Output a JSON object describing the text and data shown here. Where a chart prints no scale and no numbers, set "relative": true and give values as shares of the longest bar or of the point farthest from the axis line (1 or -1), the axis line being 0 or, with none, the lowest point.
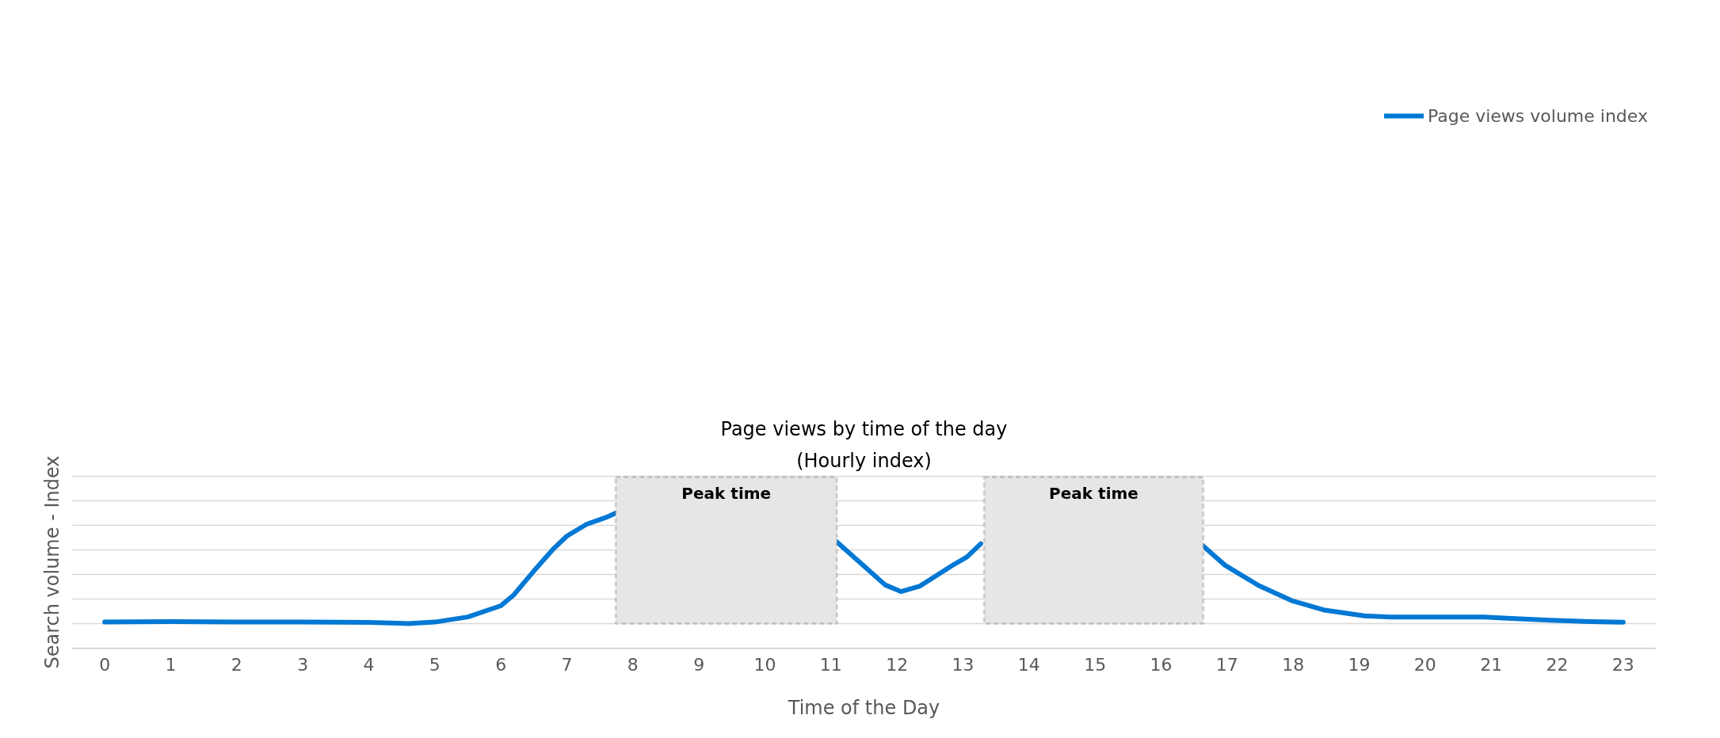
{
  "chart_data": {
    "type": "line",
    "title": "Page views by time of the day",
    "subtitle": "(Hourly index)",
    "xlabel": "Time of the Day",
    "ylabel": "Search volume - Index",
    "relative": true,
    "xlim": [
      -0.5,
      23.5
    ],
    "xticks": [
      0,
      1,
      2,
      3,
      4,
      5,
      6,
      7,
      8,
      9,
      10,
      11,
      12,
      13,
      14,
      15,
      16,
      17,
      18,
      19,
      20,
      21,
      22,
      23
    ],
    "series": [
      {
        "name": "Page views volume index",
        "color": "#0078d4",
        "x": [
          0,
          1,
          2,
          3,
          4,
          4.6,
          5,
          5.5,
          6,
          6.2,
          6.5,
          6.8,
          7,
          7.3,
          7.6,
          7.74,
          9.5,
          11.06,
          11.56,
          11.82,
          12.06,
          12.34,
          12.84,
          13.06,
          13.27,
          15,
          16.62,
          16.97,
          17.48,
          17.98,
          18.48,
          19.08,
          19.48,
          19.99,
          20.89,
          21.24,
          21.89,
          22.5,
          23
        ],
        "values": [
          0.004,
          0.008,
          0.005,
          0.004,
          0.001,
          -0.009,
          0.004,
          0.051,
          0.153,
          0.255,
          0.471,
          0.675,
          0.79,
          0.898,
          0.962,
          1.0,
          null,
          0.752,
          0.484,
          0.344,
          0.283,
          0.331,
          0.522,
          0.599,
          0.72,
          null,
          0.708,
          0.523,
          0.338,
          0.2,
          0.113,
          0.061,
          0.05,
          0.05,
          0.05,
          0.04,
          0.021,
          0.009,
          0.003
        ]
      }
    ],
    "bands": [
      {
        "axis": "x",
        "from": 7.74,
        "to": 11.09,
        "label": "Peak time",
        "color": "#e6e6e6"
      },
      {
        "axis": "x",
        "from": 13.32,
        "to": 16.64,
        "label": "Peak time",
        "color": "#e6e6e6"
      }
    ],
    "grid": "y",
    "legend": "top right",
    "line_style": "solid",
    "marker": "none"
  }
}
